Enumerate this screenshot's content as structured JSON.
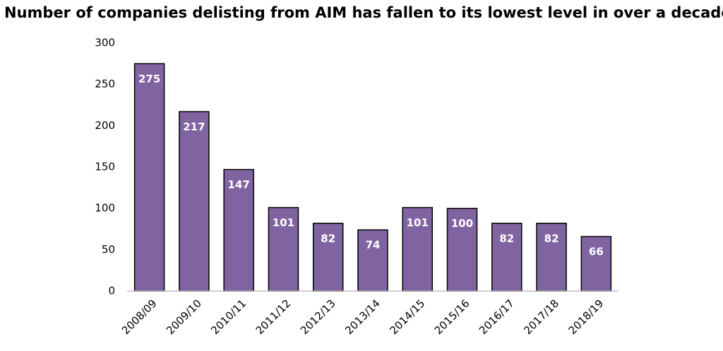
{
  "chart_data": {
    "type": "bar",
    "title": "Number of companies delisting from AIM has fallen to its lowest level in over a decade",
    "categories": [
      "2008/09",
      "2009/10",
      "2010/11",
      "2011/12",
      "2012/13",
      "2013/14",
      "2014/15",
      "2015/16",
      "2016/17",
      "2017/18",
      "2018/19"
    ],
    "values": [
      275,
      217,
      147,
      101,
      82,
      74,
      101,
      100,
      82,
      82,
      66
    ],
    "color": "#8064a2",
    "ylim": [
      0,
      300
    ],
    "yticks": [
      0,
      50,
      100,
      150,
      200,
      250,
      300
    ],
    "grid": false
  }
}
